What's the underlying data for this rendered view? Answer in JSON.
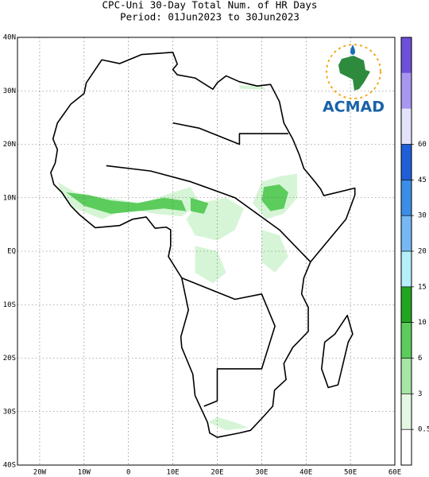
{
  "title": "CPC-Uni 30-Day Total Num. of HR Days",
  "subtitle": "Period: 01Jun2023 to 30Jun2023",
  "map": {
    "lon_range": [
      -25,
      60
    ],
    "lat_range": [
      -40,
      40
    ],
    "lat_ticks": [
      {
        "value": 40,
        "label": "40N"
      },
      {
        "value": 30,
        "label": "30N"
      },
      {
        "value": 20,
        "label": "20N"
      },
      {
        "value": 10,
        "label": "10N"
      },
      {
        "value": 0,
        "label": "EQ"
      },
      {
        "value": -10,
        "label": "10S"
      },
      {
        "value": -20,
        "label": "20S"
      },
      {
        "value": -30,
        "label": "30S"
      },
      {
        "value": -40,
        "label": "40S"
      }
    ],
    "lon_ticks": [
      {
        "value": -20,
        "label": "20W"
      },
      {
        "value": -10,
        "label": "10W"
      },
      0,
      {
        "value": 10,
        "label": "10E"
      },
      {
        "value": 20,
        "label": "20E"
      },
      {
        "value": 30,
        "label": "30E"
      },
      {
        "value": 40,
        "label": "40E"
      },
      {
        "value": 50,
        "label": "50E"
      },
      {
        "value": 60,
        "label": "60E"
      }
    ]
  },
  "colorbar": {
    "bounds": [
      0.5,
      3,
      6,
      10,
      15,
      20,
      30,
      45,
      60
    ],
    "colors": [
      "#ffffff",
      "#e4f8e4",
      "#a6e6a6",
      "#5ccc5c",
      "#21a621",
      "#b4effa",
      "#76b8f5",
      "#3b8ee8",
      "#1e5fd8",
      "#e2e2fa",
      "#a896f0",
      "#6c50d8"
    ]
  },
  "logo": {
    "text": "ACMAD"
  }
}
